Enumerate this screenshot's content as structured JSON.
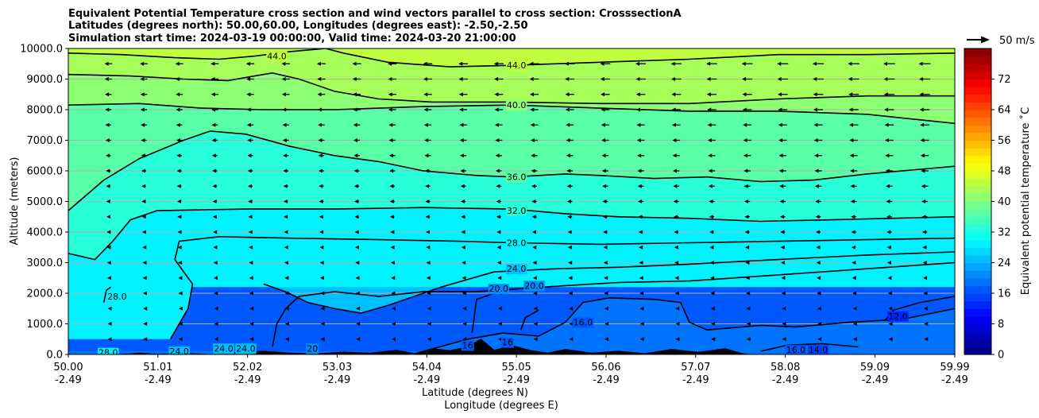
{
  "chart_data": {
    "type": "contourf",
    "title_lines": [
      "Equivalent Potential Temperature cross section and wind vectors parallel to cross section: CrosssectionA",
      "Latitudes (degrees north): 50.00,60.00, Longitudes (degrees east): -2.50,-2.50",
      "Simulation start time: 2024-03-19 00:00:00, Valid time: 2024-03-20 21:00:00"
    ],
    "xlabel_lines": [
      "Latitude (degrees N)",
      "Longitude (degrees E)"
    ],
    "ylabel": "Altitude (meters)",
    "xlim": [
      50.0,
      59.99
    ],
    "ylim": [
      0,
      10000
    ],
    "x_ticks": [
      {
        "lat": "50.00",
        "lon": "-2.49"
      },
      {
        "lat": "51.01",
        "lon": "-2.49"
      },
      {
        "lat": "52.02",
        "lon": "-2.49"
      },
      {
        "lat": "53.03",
        "lon": "-2.49"
      },
      {
        "lat": "54.04",
        "lon": "-2.49"
      },
      {
        "lat": "55.05",
        "lon": "-2.49"
      },
      {
        "lat": "56.06",
        "lon": "-2.49"
      },
      {
        "lat": "57.07",
        "lon": "-2.49"
      },
      {
        "lat": "58.08",
        "lon": "-2.49"
      },
      {
        "lat": "59.09",
        "lon": "-2.49"
      },
      {
        "lat": "59.99",
        "lon": "-2.49"
      }
    ],
    "y_ticks": [
      "0.0",
      "1000.0",
      "2000.0",
      "3000.0",
      "4000.0",
      "5000.0",
      "6000.0",
      "7000.0",
      "8000.0",
      "9000.0",
      "10000.0"
    ],
    "y_tick_values": [
      0,
      1000,
      2000,
      3000,
      4000,
      5000,
      6000,
      7000,
      8000,
      9000,
      10000
    ],
    "grid": "horizontal",
    "colorbar": {
      "label": "Equivalent potential temperature $^\\circ$C",
      "label_text": "Equivalent potential temperature ˚C",
      "range": [
        0,
        80
      ],
      "ticks": [
        0,
        8,
        16,
        24,
        32,
        40,
        48,
        56,
        64,
        72
      ],
      "tick_labels": [
        "0",
        "8",
        "16",
        "24",
        "32",
        "40",
        "48",
        "56",
        "64",
        "72"
      ],
      "levels_step": 2,
      "colormap": "jet"
    },
    "quiver_key": {
      "label": "50 m/s",
      "speed": 50
    },
    "contour_labels": [
      {
        "text": "44.0",
        "lat": 52.35,
        "alt": 9750
      },
      {
        "text": "44.0",
        "lat": 55.05,
        "alt": 9450
      },
      {
        "text": "40.0",
        "lat": 55.05,
        "alt": 8150
      },
      {
        "text": "36.0",
        "lat": 55.05,
        "alt": 5800
      },
      {
        "text": "32.0",
        "lat": 55.05,
        "alt": 4700
      },
      {
        "text": "28.0",
        "lat": 55.05,
        "alt": 3650
      },
      {
        "text": "24.0",
        "lat": 55.05,
        "alt": 2800
      },
      {
        "text": "20.0",
        "lat": 54.85,
        "alt": 2150
      },
      {
        "text": "20.0",
        "lat": 55.25,
        "alt": 2250
      },
      {
        "text": "28.0",
        "lat": 50.55,
        "alt": 1900
      },
      {
        "text": "28.0",
        "lat": 50.45,
        "alt": 60
      },
      {
        "text": "24.0",
        "lat": 51.25,
        "alt": 100
      },
      {
        "text": "24.0",
        "lat": 51.75,
        "alt": 200
      },
      {
        "text": "24.0",
        "lat": 52.0,
        "alt": 200
      },
      {
        "text": "20",
        "lat": 52.75,
        "alt": 200
      },
      {
        "text": "16",
        "lat": 54.5,
        "alt": 300
      },
      {
        "text": "16",
        "lat": 54.95,
        "alt": 400
      },
      {
        "text": "16.0",
        "lat": 55.8,
        "alt": 1050
      },
      {
        "text": "12.0",
        "lat": 59.35,
        "alt": 1250
      },
      {
        "text": "16.0",
        "lat": 58.2,
        "alt": 150
      },
      {
        "text": "14.0",
        "lat": 58.45,
        "alt": 150
      }
    ],
    "contours": [
      {
        "level": 44,
        "points": [
          [
            50.0,
            9850
          ],
          [
            50.6,
            9800
          ],
          [
            51.2,
            9700
          ],
          [
            51.7,
            9650
          ],
          [
            52.1,
            9750
          ],
          [
            52.5,
            9900
          ],
          [
            52.9,
            10000
          ],
          [
            53.1,
            9850
          ],
          [
            53.6,
            9550
          ],
          [
            54.3,
            9400
          ],
          [
            55.0,
            9450
          ],
          [
            56.0,
            9550
          ],
          [
            57.0,
            9650
          ],
          [
            58.0,
            9800
          ],
          [
            59.0,
            9800
          ],
          [
            59.99,
            9850
          ]
        ]
      },
      {
        "level": 42,
        "points": [
          [
            50.0,
            9150
          ],
          [
            50.7,
            9100
          ],
          [
            51.3,
            9000
          ],
          [
            51.8,
            8950
          ],
          [
            52.1,
            9100
          ],
          [
            52.3,
            9200
          ],
          [
            52.6,
            9000
          ],
          [
            53.0,
            8600
          ],
          [
            53.5,
            8350
          ],
          [
            54.1,
            8250
          ],
          [
            55.0,
            8250
          ],
          [
            56.0,
            8200
          ],
          [
            57.0,
            8200
          ],
          [
            58.0,
            8350
          ],
          [
            59.0,
            8450
          ],
          [
            59.99,
            8450
          ]
        ]
      },
      {
        "level": 40,
        "points": [
          [
            50.0,
            8150
          ],
          [
            50.8,
            8200
          ],
          [
            51.5,
            8050
          ],
          [
            52.2,
            8000
          ],
          [
            53.0,
            8000
          ],
          [
            54.0,
            8100
          ],
          [
            55.0,
            8150
          ],
          [
            56.0,
            8050
          ],
          [
            57.0,
            7950
          ],
          [
            58.0,
            7950
          ],
          [
            59.0,
            7850
          ],
          [
            59.99,
            7550
          ]
        ]
      },
      {
        "level": 36,
        "points": [
          [
            50.0,
            4700
          ],
          [
            50.4,
            5700
          ],
          [
            50.8,
            6400
          ],
          [
            51.3,
            7000
          ],
          [
            51.6,
            7300
          ],
          [
            52.0,
            7200
          ],
          [
            52.5,
            6800
          ],
          [
            53.0,
            6500
          ],
          [
            53.5,
            6300
          ],
          [
            54.0,
            6000
          ],
          [
            54.6,
            5850
          ],
          [
            55.0,
            5800
          ],
          [
            55.6,
            5900
          ],
          [
            56.0,
            5850
          ],
          [
            56.6,
            5750
          ],
          [
            57.2,
            5800
          ],
          [
            57.8,
            5650
          ],
          [
            58.4,
            5700
          ],
          [
            59.0,
            5900
          ],
          [
            59.99,
            6150
          ]
        ]
      },
      {
        "level": 32,
        "points": [
          [
            50.0,
            3300
          ],
          [
            50.3,
            3100
          ],
          [
            50.5,
            3700
          ],
          [
            50.7,
            4400
          ],
          [
            51.0,
            4700
          ],
          [
            52.0,
            4750
          ],
          [
            53.0,
            4750
          ],
          [
            54.0,
            4800
          ],
          [
            55.0,
            4750
          ],
          [
            55.6,
            4600
          ],
          [
            56.2,
            4500
          ],
          [
            57.0,
            4450
          ],
          [
            57.8,
            4350
          ],
          [
            58.6,
            4400
          ],
          [
            59.99,
            4500
          ]
        ]
      },
      {
        "level": 28,
        "points": [
          [
            51.15,
            500
          ],
          [
            51.35,
            1500
          ],
          [
            51.4,
            2300
          ],
          [
            51.2,
            3100
          ],
          [
            51.25,
            3700
          ],
          [
            51.7,
            3850
          ],
          [
            52.5,
            3800
          ],
          [
            53.5,
            3750
          ],
          [
            54.4,
            3700
          ],
          [
            55.0,
            3650
          ],
          [
            56.0,
            3600
          ],
          [
            57.0,
            3650
          ],
          [
            58.0,
            3700
          ],
          [
            59.0,
            3750
          ],
          [
            59.99,
            3800
          ]
        ]
      },
      {
        "level": 28,
        "points": [
          [
            50.4,
            1700
          ],
          [
            50.43,
            2100
          ],
          [
            50.48,
            2200
          ]
        ]
      },
      {
        "level": 24,
        "points": [
          [
            52.2,
            2300
          ],
          [
            52.45,
            2050
          ],
          [
            52.7,
            1700
          ],
          [
            53.0,
            1500
          ],
          [
            53.3,
            1350
          ],
          [
            53.6,
            1600
          ],
          [
            54.2,
            2200
          ],
          [
            54.8,
            2700
          ],
          [
            55.5,
            2800
          ],
          [
            56.2,
            2850
          ],
          [
            57.0,
            2950
          ],
          [
            58.0,
            3100
          ],
          [
            59.0,
            3250
          ],
          [
            59.99,
            3350
          ]
        ]
      },
      {
        "level": 20,
        "points": [
          [
            52.3,
            250
          ],
          [
            52.35,
            1000
          ],
          [
            52.45,
            1500
          ],
          [
            52.6,
            1900
          ],
          [
            53.0,
            2050
          ],
          [
            53.5,
            1900
          ],
          [
            54.0,
            2050
          ],
          [
            54.6,
            2050
          ],
          [
            55.1,
            2150
          ],
          [
            55.6,
            2250
          ],
          [
            56.2,
            2350
          ],
          [
            57.0,
            2400
          ],
          [
            58.0,
            2600
          ],
          [
            59.0,
            2800
          ],
          [
            59.99,
            3000
          ]
        ]
      },
      {
        "level": 20,
        "points": [
          [
            54.55,
            700
          ],
          [
            54.6,
            1800
          ],
          [
            54.85,
            2050
          ]
        ]
      },
      {
        "level": 16,
        "points": [
          [
            54.0,
            100
          ],
          [
            54.5,
            500
          ],
          [
            54.9,
            700
          ],
          [
            55.3,
            600
          ],
          [
            55.6,
            1050
          ],
          [
            55.8,
            1700
          ],
          [
            56.1,
            1850
          ],
          [
            56.6,
            1800
          ],
          [
            56.9,
            1700
          ],
          [
            57.0,
            1050
          ],
          [
            57.2,
            800
          ],
          [
            57.8,
            950
          ],
          [
            58.2,
            900
          ],
          [
            58.8,
            1050
          ],
          [
            59.4,
            1150
          ],
          [
            59.99,
            1500
          ]
        ]
      },
      {
        "level": 16,
        "points": [
          [
            55.1,
            800
          ],
          [
            55.15,
            1200
          ],
          [
            55.3,
            1450
          ]
        ]
      },
      {
        "level": 12,
        "points": [
          [
            59.2,
            1100
          ],
          [
            59.3,
            1450
          ],
          [
            59.6,
            1700
          ],
          [
            59.99,
            1900
          ]
        ]
      },
      {
        "level": 14,
        "points": [
          [
            57.8,
            100
          ],
          [
            58.1,
            300
          ],
          [
            58.5,
            350
          ],
          [
            58.9,
            250
          ]
        ]
      }
    ],
    "wind_u_note": "Wind vectors point toward decreasing latitude (leftward) with magnitude increasing with altitude."
  }
}
